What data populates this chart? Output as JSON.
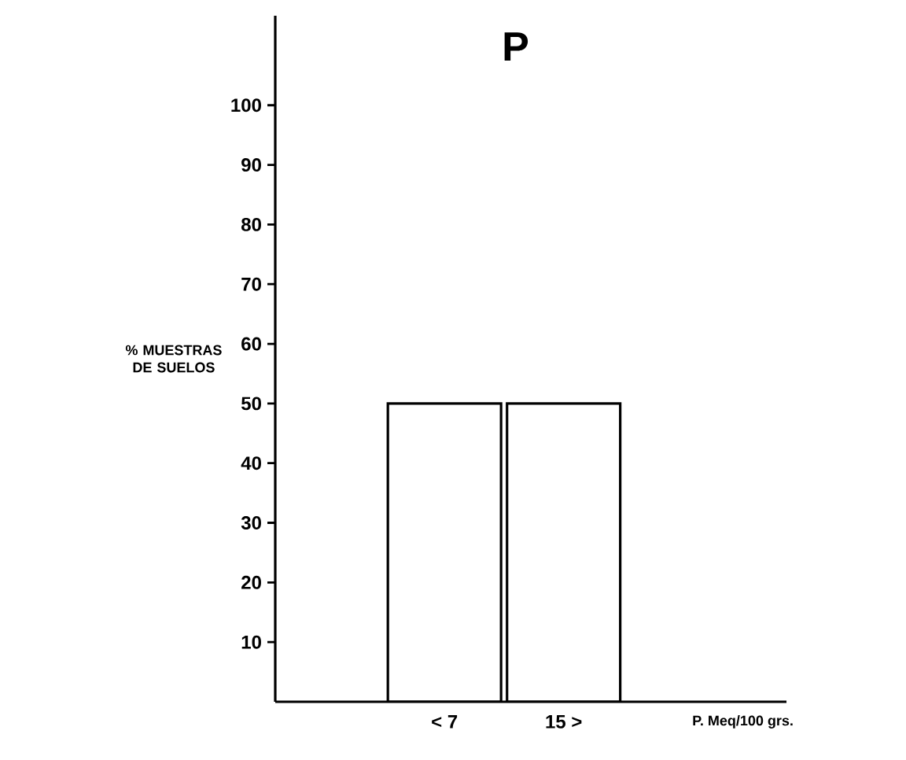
{
  "chart_data": {
    "type": "bar",
    "title": "P",
    "ylabel": "% MUESTRAS DE SUELOS",
    "xlabel": "P.  Meq/100 grs.",
    "categories": [
      "< 7",
      "15 >"
    ],
    "values": [
      50,
      50
    ],
    "color": "#000000",
    "ylim": [
      0,
      115
    ],
    "yticks": [
      10,
      20,
      30,
      40,
      50,
      60,
      70,
      80,
      90,
      100
    ],
    "grid": false
  }
}
